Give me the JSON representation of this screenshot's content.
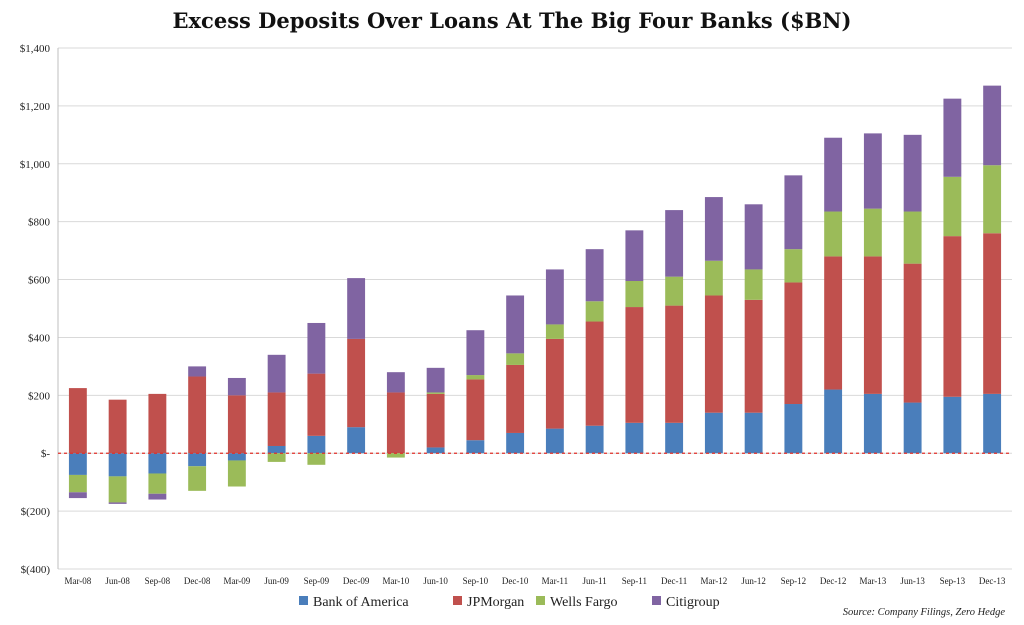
{
  "chart_data": {
    "type": "bar",
    "stacked": true,
    "title": "Excess Deposits Over Loans At The Big Four Banks ($BN)",
    "xlabel": "",
    "ylabel": "",
    "ylim": [
      -400,
      1400
    ],
    "yticks": [
      -400,
      -200,
      0,
      200,
      400,
      600,
      800,
      1000,
      1200,
      1400
    ],
    "ytick_labels": [
      "$(400)",
      "$(200)",
      "$-",
      "$200",
      "$400",
      "$600",
      "$800",
      "$1,000",
      "$1,200",
      "$1,400"
    ],
    "grid": true,
    "zero_line": "dashed red",
    "legend": "bottom",
    "categories": [
      "Mar-08",
      "Jun-08",
      "Sep-08",
      "Dec-08",
      "Mar-09",
      "Jun-09",
      "Sep-09",
      "Dec-09",
      "Mar-10",
      "Jun-10",
      "Sep-10",
      "Dec-10",
      "Mar-11",
      "Jun-11",
      "Sep-11",
      "Dec-11",
      "Mar-12",
      "Jun-12",
      "Sep-12",
      "Dec-12",
      "Mar-13",
      "Jun-13",
      "Sep-13",
      "Dec-13"
    ],
    "series": [
      {
        "name": "Bank of America",
        "color": "#4a7ebb",
        "values": [
          -75,
          -80,
          -70,
          -45,
          -25,
          25,
          60,
          90,
          0,
          20,
          45,
          70,
          85,
          95,
          105,
          105,
          140,
          140,
          170,
          220,
          205,
          175,
          195,
          205
        ]
      },
      {
        "name": "JPMorgan",
        "color": "#c0504d",
        "values": [
          225,
          185,
          205,
          265,
          200,
          185,
          215,
          305,
          210,
          185,
          210,
          235,
          310,
          360,
          400,
          405,
          405,
          390,
          420,
          460,
          475,
          480,
          555,
          555
        ]
      },
      {
        "name": "Wells Fargo",
        "color": "#9bbb59",
        "values": [
          -60,
          -90,
          -70,
          -85,
          -90,
          -30,
          -40,
          0,
          -15,
          5,
          15,
          40,
          50,
          70,
          90,
          100,
          120,
          105,
          115,
          155,
          165,
          180,
          205,
          235
        ]
      },
      {
        "name": "Citigroup",
        "color": "#8064a2",
        "values": [
          -20,
          -5,
          -20,
          35,
          60,
          130,
          175,
          210,
          70,
          85,
          155,
          200,
          190,
          180,
          175,
          230,
          220,
          225,
          255,
          255,
          260,
          265,
          270,
          275
        ]
      }
    ],
    "source": "Source: Company Filings, Zero Hedge"
  }
}
